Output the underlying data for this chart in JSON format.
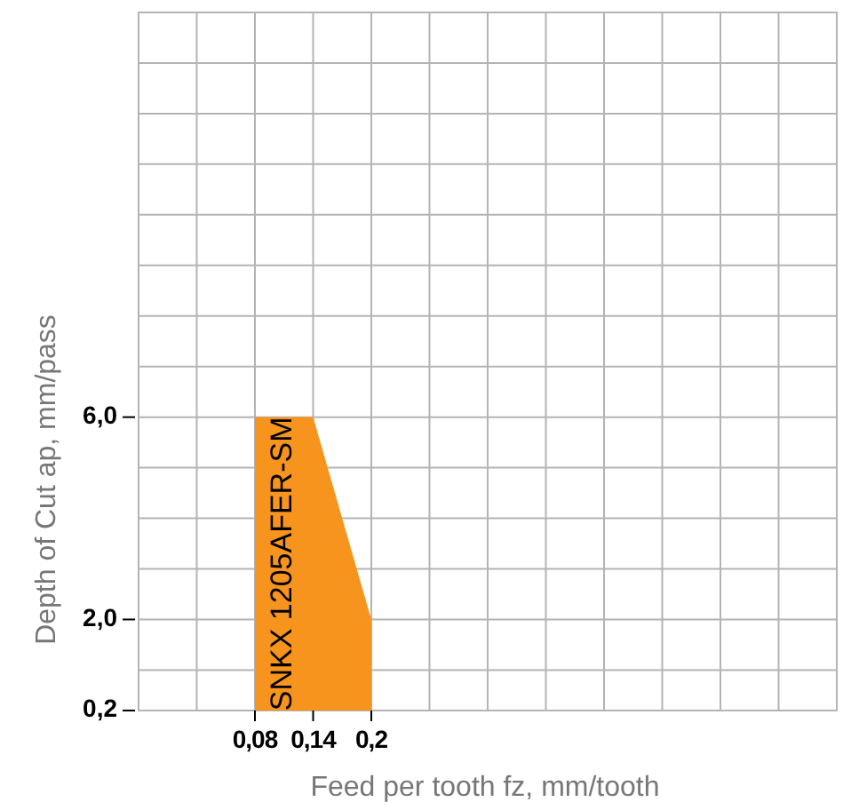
{
  "chart_data": {
    "type": "area",
    "xlabel": "Feed per tooth fz, mm/tooth",
    "ylabel": "Depth of Cut ap, mm/pass",
    "series": [
      {
        "name": "SNKX 1205AFER-SM",
        "color": "#f7941d",
        "x": [
          0.08,
          0.14,
          0.2
        ],
        "values": [
          6,
          6,
          2
        ]
      }
    ],
    "xlim": [
      -0.04,
      0.68
    ],
    "xticks": [
      {
        "value": -0.04,
        "label": null
      },
      {
        "value": 0.02,
        "label": null
      },
      {
        "value": 0.08,
        "label": "0,08"
      },
      {
        "value": 0.14,
        "label": "0,14"
      },
      {
        "value": 0.2,
        "label": "0,2"
      },
      {
        "value": 0.26,
        "label": null
      },
      {
        "value": 0.32,
        "label": null
      },
      {
        "value": 0.38,
        "label": null
      },
      {
        "value": 0.44,
        "label": null
      },
      {
        "value": 0.5,
        "label": null
      },
      {
        "value": 0.56,
        "label": null
      },
      {
        "value": 0.62,
        "label": null
      },
      {
        "value": 0.68,
        "label": null
      }
    ],
    "ylim": [
      0.2,
      14
    ],
    "yticks": [
      {
        "value": 0.2,
        "label": "0,2"
      },
      {
        "value": 1,
        "label": null
      },
      {
        "value": 2,
        "label": "2,0"
      },
      {
        "value": 3,
        "label": null
      },
      {
        "value": 4,
        "label": null
      },
      {
        "value": 5,
        "label": null
      },
      {
        "value": 6,
        "label": "6,0"
      },
      {
        "value": 7,
        "label": null
      },
      {
        "value": 8,
        "label": null
      },
      {
        "value": 9,
        "label": null
      },
      {
        "value": 10,
        "label": null
      },
      {
        "value": 11,
        "label": null
      },
      {
        "value": 12,
        "label": null
      },
      {
        "value": 13,
        "label": null
      },
      {
        "value": 14,
        "label": null
      }
    ],
    "grid": true
  }
}
